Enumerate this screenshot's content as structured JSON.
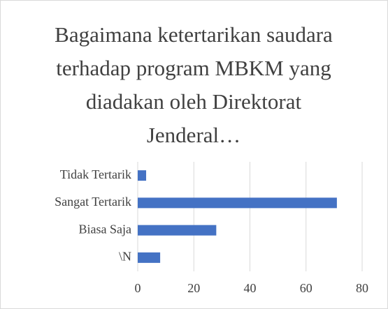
{
  "chart_data": {
    "type": "hbar",
    "title": "Bagaimana ketertarikan saudara terhadap program MBKM yang diadakan oleh Direktorat Jenderal…",
    "categories": [
      "Tidak Tertarik",
      "Sangat Tertarik",
      "Biasa Saja",
      "\\N"
    ],
    "values": [
      3,
      71,
      28,
      8
    ],
    "color": "#4472c4",
    "xlim": [
      0,
      80
    ],
    "xticks": [
      0,
      20,
      40,
      60,
      80
    ],
    "grid": true
  }
}
